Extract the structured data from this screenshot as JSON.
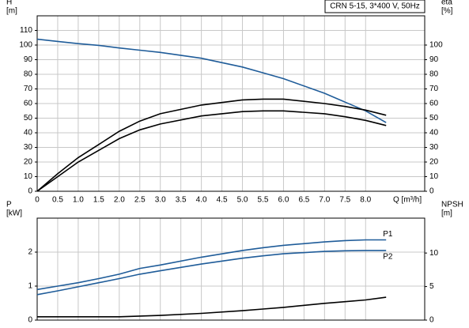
{
  "chart_data": [
    {
      "type": "line",
      "title": "CRN 5-15, 3*400 V, 50Hz",
      "ylabel": [
        "H",
        "[m]"
      ],
      "y2label": [
        "eta",
        "[%]"
      ],
      "xlabel": "Q [m³/h]",
      "xlim": [
        0,
        9.44
      ],
      "xticks": [
        0,
        0.5,
        {
          "value": 1,
          "label": "1.0"
        },
        1.5,
        {
          "value": 2,
          "label": "2.0"
        },
        2.5,
        {
          "value": 3,
          "label": "3.0"
        },
        3.5,
        {
          "value": 4,
          "label": "4.0"
        },
        4.5,
        {
          "value": 5,
          "label": "5.0"
        },
        5.5,
        {
          "value": 6,
          "label": "6.0"
        },
        6.5,
        {
          "value": 7,
          "label": "7.0"
        },
        7.5,
        {
          "value": 8,
          "label": "8.0"
        }
      ],
      "ylim": [
        0,
        120
      ],
      "yticks": [
        0,
        10,
        20,
        30,
        40,
        50,
        60,
        70,
        80,
        90,
        100,
        110
      ],
      "y2lim": [
        0,
        120
      ],
      "y2ticks": [
        0,
        10,
        20,
        30,
        40,
        50,
        60,
        70,
        80,
        90,
        100
      ],
      "grid": true,
      "x": [
        0,
        0.5,
        1,
        1.5,
        2,
        2.5,
        3,
        4,
        5,
        5.5,
        6,
        7,
        7.5,
        8,
        8.5
      ],
      "series": [
        {
          "color": "#1f5c99",
          "values": [
            104,
            102.5,
            101,
            99.8,
            98,
            96.5,
            95,
            91,
            85,
            81,
            77,
            67,
            61,
            55,
            47
          ]
        },
        {
          "color": "#000000",
          "axis": "y2",
          "values": [
            0,
            12,
            23,
            32,
            41,
            48,
            53,
            59,
            62.5,
            63,
            63,
            60,
            58,
            55.5,
            52
          ]
        },
        {
          "color": "#000000",
          "axis": "y2",
          "values": [
            0,
            10,
            20,
            28,
            36,
            42,
            46,
            51.5,
            54.5,
            55,
            55,
            53,
            51,
            48.5,
            45
          ]
        }
      ]
    },
    {
      "type": "line",
      "ylabel": [
        "P",
        "[kW]"
      ],
      "y2label": [
        "NPSH",
        "[m]"
      ],
      "xlim": [
        0,
        9.44
      ],
      "ylim": [
        0,
        3.0
      ],
      "yticks": [
        0,
        1,
        2
      ],
      "y2lim": [
        0,
        15.2
      ],
      "y2ticks": [
        0,
        5,
        10
      ],
      "grid": true,
      "x": [
        0,
        0.5,
        1,
        1.5,
        2,
        2.5,
        3,
        4,
        5,
        5.5,
        6,
        7,
        7.5,
        8,
        8.5
      ],
      "series": [
        {
          "name": "P1",
          "color": "#1f5c99",
          "values": [
            0.9,
            1.0,
            1.1,
            1.22,
            1.35,
            1.52,
            1.62,
            1.85,
            2.05,
            2.13,
            2.2,
            2.3,
            2.34,
            2.36,
            2.36
          ]
        },
        {
          "name": "P2",
          "color": "#1f5c99",
          "values": [
            0.75,
            0.86,
            0.98,
            1.1,
            1.22,
            1.35,
            1.45,
            1.65,
            1.82,
            1.89,
            1.95,
            2.02,
            2.04,
            2.05,
            2.05
          ]
        },
        {
          "color": "#000000",
          "axis": "y2",
          "values": [
            0.5,
            0.5,
            0.5,
            0.5,
            0.5,
            0.6,
            0.7,
            1.0,
            1.4,
            1.65,
            1.9,
            2.5,
            2.75,
            3.0,
            3.4
          ]
        }
      ]
    }
  ]
}
